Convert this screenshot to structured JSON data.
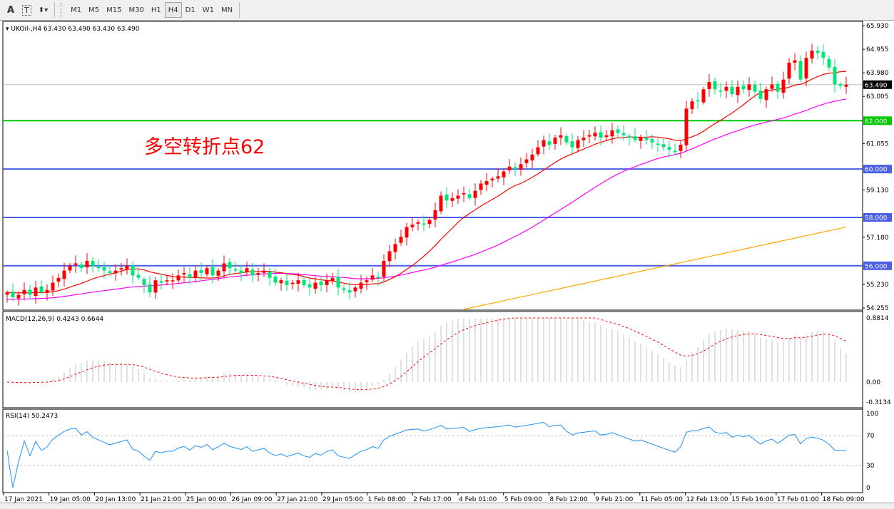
{
  "toolbar": {
    "text_tool": "A",
    "textbox_tool": "T",
    "timeframes": [
      "M1",
      "M5",
      "M15",
      "M30",
      "H1",
      "H4",
      "D1",
      "W1",
      "MN"
    ],
    "active_timeframe": "H4"
  },
  "chart_header": {
    "symbol_line": "UKOil-,H4  63.430 63.490 63.430 63.490"
  },
  "annotation": {
    "text": "多空转折点62",
    "color": "#ff0000"
  },
  "price_axis": {
    "ticks": [
      "65.930",
      "64.955",
      "63.980",
      "63.005",
      "61.055",
      "59.130",
      "57.180",
      "55.230",
      "54.255"
    ],
    "tick_values": [
      65.93,
      64.955,
      63.98,
      63.005,
      61.055,
      59.13,
      57.18,
      55.23,
      54.255
    ],
    "range": [
      54.255,
      65.93
    ]
  },
  "levels": [
    {
      "label": "62.000",
      "value": 62.0,
      "color": "#00c800"
    },
    {
      "label": "60.000",
      "value": 60.0,
      "color": "#4a5ee6"
    },
    {
      "label": "58.000",
      "value": 58.0,
      "color": "#4a5ee6"
    },
    {
      "label": "56.000",
      "value": 56.0,
      "color": "#4a5ee6"
    }
  ],
  "current_price": {
    "label": "63.490",
    "value": 63.49
  },
  "macd": {
    "title": "MACD(12,26,9) 0.4243 0.6644",
    "ticks": [
      "0.8814",
      "0.00",
      "-0.3134"
    ],
    "range": [
      -0.3134,
      0.8814
    ]
  },
  "rsi": {
    "title": "RSI(14) 50.2473",
    "ticks": [
      "100",
      "70",
      "30",
      "0"
    ],
    "levels": [
      70,
      30
    ]
  },
  "time_axis": [
    "17 Jan 2021",
    "19 Jan 05:00",
    "20 Jan 13:00",
    "21 Jan 21:00",
    "25 Jan 00:00",
    "26 Jan 09:00",
    "27 Jan 21:00",
    "29 Jan 05:00",
    "1 Feb 08:00",
    "2 Feb 17:00",
    "4 Feb 01:00",
    "5 Feb 09:00",
    "8 Feb 12:00",
    "9 Feb 21:00",
    "11 Feb 05:00",
    "12 Feb 13:00",
    "15 Feb 16:00",
    "17 Feb 01:00",
    "18 Feb 09:00"
  ],
  "colors": {
    "bull": "#ff0000",
    "bear": "#00e676",
    "ma_fast": "#ff0000",
    "ma_mid": "#ff00ff",
    "ma_slow": "#ffa500",
    "macd_hist": "#c0c0c0",
    "macd_signal": "#ff0000",
    "rsi": "#1e90ff"
  },
  "chart_data": {
    "type": "candlestick",
    "closes": [
      54.9,
      54.7,
      54.8,
      55.0,
      54.8,
      55.1,
      54.9,
      55.0,
      55.3,
      55.5,
      55.8,
      56.0,
      56.1,
      55.9,
      56.2,
      56.0,
      55.9,
      55.8,
      55.7,
      55.8,
      55.9,
      56.0,
      55.6,
      55.5,
      55.2,
      54.9,
      55.4,
      55.3,
      55.4,
      55.4,
      55.6,
      55.7,
      55.5,
      55.8,
      55.7,
      55.9,
      55.6,
      55.8,
      56.1,
      55.9,
      55.8,
      55.7,
      55.9,
      55.6,
      55.7,
      55.8,
      55.5,
      55.3,
      55.4,
      55.2,
      55.3,
      55.4,
      55.2,
      55.1,
      55.3,
      55.2,
      55.4,
      55.5,
      55.1,
      55.0,
      54.9,
      55.1,
      55.3,
      55.4,
      55.6,
      55.5,
      56.2,
      56.6,
      56.9,
      57.2,
      57.6,
      57.7,
      57.8,
      57.7,
      57.9,
      58.3,
      58.9,
      58.7,
      58.8,
      58.9,
      59.0,
      58.8,
      59.1,
      59.4,
      59.5,
      59.6,
      59.7,
      59.9,
      60.1,
      60.0,
      60.2,
      60.4,
      60.6,
      60.9,
      61.2,
      61.0,
      61.3,
      61.4,
      61.1,
      60.9,
      61.2,
      61.3,
      61.4,
      61.5,
      61.3,
      61.4,
      61.6,
      61.5,
      61.4,
      61.3,
      61.2,
      61.3,
      61.2,
      61.1,
      61.0,
      60.9,
      60.8,
      60.7,
      61.0,
      62.5,
      62.8,
      62.8,
      63.3,
      63.6,
      63.3,
      63.2,
      63.4,
      63.1,
      63.4,
      63.3,
      63.5,
      63.2,
      62.9,
      63.3,
      63.5,
      63.2,
      63.7,
      64.4,
      64.5,
      63.7,
      64.6,
      64.9,
      64.8,
      64.6,
      64.2,
      63.5,
      63.45,
      63.49
    ],
    "slow_ma_points": [
      [
        80,
        54.2
      ],
      [
        147,
        57.6
      ]
    ]
  }
}
